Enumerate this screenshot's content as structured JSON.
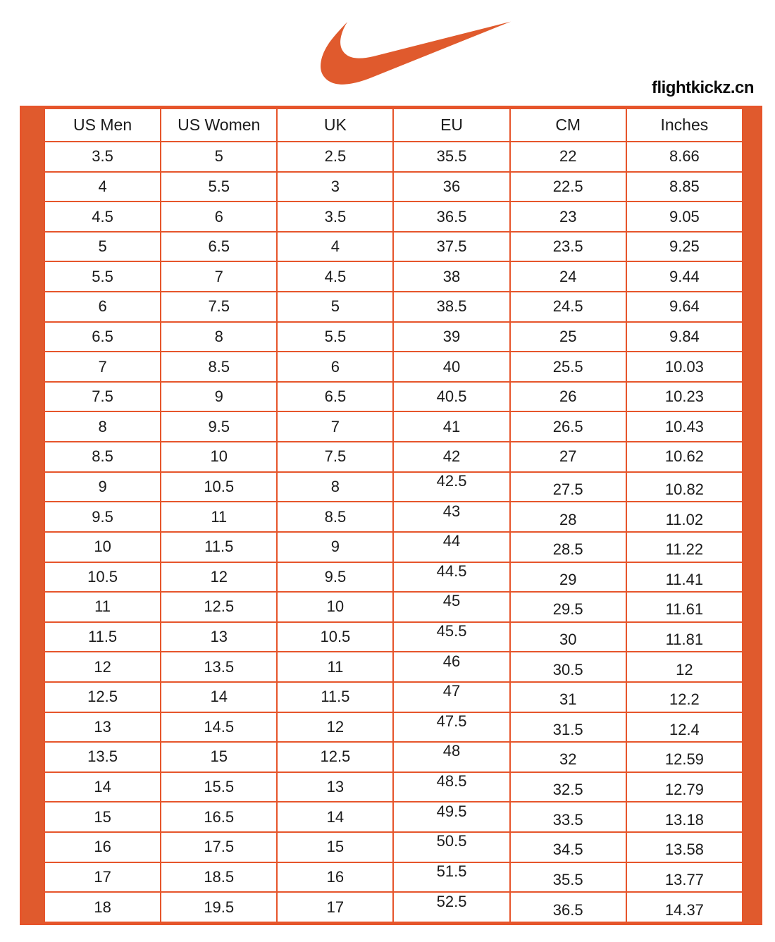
{
  "brand": {
    "logo_icon": "nike-swoosh",
    "watermark": "flightkickz.cn"
  },
  "colors": {
    "accent": "#E05A2D",
    "grid": "#E6552B",
    "text": "#1B1B1B",
    "page_bg": "#FFFFFF"
  },
  "chart_data": {
    "type": "table",
    "columns": [
      "US Men",
      "US Women",
      "UK",
      "EU",
      "CM",
      "Inches"
    ],
    "rows": [
      [
        "3.5",
        "5",
        "2.5",
        "35.5",
        "22",
        "8.66"
      ],
      [
        "4",
        "5.5",
        "3",
        "36",
        "22.5",
        "8.85"
      ],
      [
        "4.5",
        "6",
        "3.5",
        "36.5",
        "23",
        "9.05"
      ],
      [
        "5",
        "6.5",
        "4",
        "37.5",
        "23.5",
        "9.25"
      ],
      [
        "5.5",
        "7",
        "4.5",
        "38",
        "24",
        "9.44"
      ],
      [
        "6",
        "7.5",
        "5",
        "38.5",
        "24.5",
        "9.64"
      ],
      [
        "6.5",
        "8",
        "5.5",
        "39",
        "25",
        "9.84"
      ],
      [
        "7",
        "8.5",
        "6",
        "40",
        "25.5",
        "10.03"
      ],
      [
        "7.5",
        "9",
        "6.5",
        "40.5",
        "26",
        "10.23"
      ],
      [
        "8",
        "9.5",
        "7",
        "41",
        "26.5",
        "10.43"
      ],
      [
        "8.5",
        "10",
        "7.5",
        "42",
        "27",
        "10.62"
      ],
      [
        "9",
        "10.5",
        "8",
        "42.5",
        "27.5",
        "10.82"
      ],
      [
        "9.5",
        "11",
        "8.5",
        "43",
        "28",
        "11.02"
      ],
      [
        "10",
        "11.5",
        "9",
        "44",
        "28.5",
        "11.22"
      ],
      [
        "10.5",
        "12",
        "9.5",
        "44.5",
        "29",
        "11.41"
      ],
      [
        "11",
        "12.5",
        "10",
        "45",
        "29.5",
        "11.61"
      ],
      [
        "11.5",
        "13",
        "10.5",
        "45.5",
        "30",
        "11.81"
      ],
      [
        "12",
        "13.5",
        "11",
        "46",
        "30.5",
        "12"
      ],
      [
        "12.5",
        "14",
        "11.5",
        "47",
        "31",
        "12.2"
      ],
      [
        "13",
        "14.5",
        "12",
        "47.5",
        "31.5",
        "12.4"
      ],
      [
        "13.5",
        "15",
        "12.5",
        "48",
        "32",
        "12.59"
      ],
      [
        "14",
        "15.5",
        "13",
        "48.5",
        "32.5",
        "12.79"
      ],
      [
        "15",
        "16.5",
        "14",
        "49.5",
        "33.5",
        "13.18"
      ],
      [
        "16",
        "17.5",
        "15",
        "50.5",
        "34.5",
        "13.58"
      ],
      [
        "17",
        "18.5",
        "16",
        "51.5",
        "35.5",
        "13.77"
      ],
      [
        "18",
        "19.5",
        "17",
        "52.5",
        "36.5",
        "14.37"
      ]
    ]
  }
}
